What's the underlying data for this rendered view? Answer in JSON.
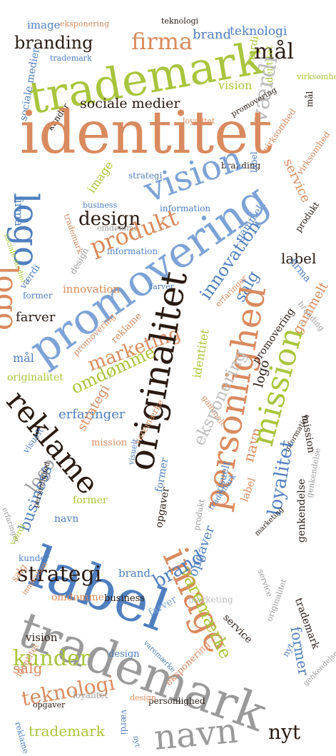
{
  "palette": {
    "green": "#a9c53d",
    "orange": "#d98a5e",
    "blue": "#4f7fbf",
    "lightblue": "#7da3d6",
    "gray": "#9a9a9a",
    "lightgray": "#bdbdbd",
    "dark": "#2a1a12"
  },
  "words": [
    {
      "text": "image",
      "color": "blue"
    },
    {
      "text": "eksponering",
      "color": "orange"
    },
    {
      "text": "teknologi",
      "color": "dark"
    },
    {
      "text": "branding",
      "color": "dark"
    },
    {
      "text": "firma",
      "color": "orange"
    },
    {
      "text": "brand",
      "color": "blue"
    },
    {
      "text": "teknologi",
      "color": "blue"
    },
    {
      "text": "værdi",
      "color": "green"
    },
    {
      "text": "trademark",
      "color": "green"
    },
    {
      "text": "mål",
      "color": "dark"
    },
    {
      "text": "trademark",
      "color": "blue"
    },
    {
      "text": "sociale medier",
      "color": "blue"
    },
    {
      "text": "virksomhed",
      "color": "green"
    },
    {
      "text": "vision",
      "color": "green"
    },
    {
      "text": "identitet",
      "color": "green"
    },
    {
      "text": "mål",
      "color": "dark"
    },
    {
      "text": "værdi",
      "color": "lightgray"
    },
    {
      "text": "kunder",
      "color": "dark"
    },
    {
      "text": "sociale medier",
      "color": "dark"
    },
    {
      "text": "loyalitet",
      "color": "orange"
    },
    {
      "text": "promovering",
      "color": "dark"
    },
    {
      "text": "identitet",
      "color": "orange"
    },
    {
      "text": "virksomhed",
      "color": "orange"
    },
    {
      "text": "branding",
      "color": "dark"
    },
    {
      "text": "label",
      "color": "blue"
    },
    {
      "text": "service",
      "color": "orange"
    },
    {
      "text": "virksomhed",
      "color": "orange"
    },
    {
      "text": "strategi",
      "color": "blue"
    },
    {
      "text": "image",
      "color": "green"
    },
    {
      "text": "vision",
      "color": "lightblue"
    },
    {
      "text": "logo",
      "color": "blue"
    },
    {
      "text": "firma",
      "color": "blue"
    },
    {
      "text": "business",
      "color": "blue"
    },
    {
      "text": "design",
      "color": "dark"
    },
    {
      "text": "information",
      "color": "blue"
    },
    {
      "text": "produkt",
      "color": "dark"
    },
    {
      "text": "trademark",
      "color": "orange"
    },
    {
      "text": "omdømme",
      "color": "gray"
    },
    {
      "text": "produkt",
      "color": "orange"
    },
    {
      "text": "sociale medier",
      "color": "green"
    },
    {
      "text": "logo",
      "color": "orange"
    },
    {
      "text": "information",
      "color": "blue"
    },
    {
      "text": "gammelt",
      "color": "blue"
    },
    {
      "text": "label",
      "color": "dark"
    },
    {
      "text": "promovering",
      "color": "lightblue"
    },
    {
      "text": "design",
      "color": "gray"
    },
    {
      "text": "firma",
      "color": "blue"
    },
    {
      "text": "værdi",
      "color": "blue"
    },
    {
      "text": "innovation",
      "color": "orange"
    },
    {
      "text": "innovation",
      "color": "blue"
    },
    {
      "text": "salg",
      "color": "blue"
    },
    {
      "text": "former",
      "color": "blue"
    },
    {
      "text": "farver",
      "color": "blue"
    },
    {
      "text": "erfaringer",
      "color": "orange"
    },
    {
      "text": "gammelt",
      "color": "orange"
    },
    {
      "text": "branding",
      "color": "gray"
    },
    {
      "text": "farver",
      "color": "dark"
    },
    {
      "text": "marketing",
      "color": "orange"
    },
    {
      "text": "originalitet",
      "color": "dark"
    },
    {
      "text": "personlighed",
      "color": "orange"
    },
    {
      "text": "promovering",
      "color": "orange"
    },
    {
      "text": "reklame",
      "color": "orange"
    },
    {
      "text": "mål",
      "color": "blue"
    },
    {
      "text": "omdømme",
      "color": "green"
    },
    {
      "text": "identitet",
      "color": "green"
    },
    {
      "text": "originalitet",
      "color": "green"
    },
    {
      "text": "promovering",
      "color": "dark"
    },
    {
      "text": "gammelt",
      "color": "orange"
    },
    {
      "text": "logo",
      "color": "dark"
    },
    {
      "text": "reklame",
      "color": "dark"
    },
    {
      "text": "erfaringer",
      "color": "blue"
    },
    {
      "text": "mission",
      "color": "dark"
    },
    {
      "text": "strategi",
      "color": "orange"
    },
    {
      "text": "eksponering",
      "color": "lightgray"
    },
    {
      "text": "visuelt",
      "color": "blue"
    },
    {
      "text": "logo",
      "color": "gray"
    },
    {
      "text": "mission",
      "color": "orange"
    },
    {
      "text": "information",
      "color": "dark"
    },
    {
      "text": "navn",
      "color": "orange"
    },
    {
      "text": "mission",
      "color": "green"
    },
    {
      "text": "visuelt",
      "color": "blue"
    },
    {
      "text": "varemærke",
      "color": "orange"
    },
    {
      "text": "former",
      "color": "blue"
    },
    {
      "text": "business",
      "color": "blue"
    },
    {
      "text": "opgaver",
      "color": "dark"
    },
    {
      "text": "visuelt",
      "color": "blue"
    },
    {
      "text": "label",
      "color": "orange"
    },
    {
      "text": "loyalitet",
      "color": "blue"
    },
    {
      "text": "genkendelse",
      "color": "gray"
    },
    {
      "text": "erfaringer",
      "color": "gray"
    },
    {
      "text": "former",
      "color": "green"
    },
    {
      "text": "navn",
      "color": "blue"
    },
    {
      "text": "personlighed",
      "color": "dark"
    },
    {
      "text": "label",
      "color": "blue"
    },
    {
      "text": "trademark",
      "color": "blue"
    },
    {
      "text": "produkt",
      "color": "gray"
    },
    {
      "text": "marketing",
      "color": "dark"
    },
    {
      "text": "image",
      "color": "orange"
    },
    {
      "text": "genkendelse",
      "color": "dark"
    },
    {
      "text": "værdi",
      "color": "green"
    },
    {
      "text": "kunder",
      "color": "blue"
    },
    {
      "text": "opgaver",
      "color": "blue"
    },
    {
      "text": "strategi",
      "color": "dark"
    },
    {
      "text": "salg",
      "color": "orange"
    },
    {
      "text": "brand",
      "color": "blue"
    },
    {
      "text": "innovation",
      "color": "orange"
    },
    {
      "text": "service",
      "color": "gray"
    },
    {
      "text": "omdømme",
      "color": "orange"
    },
    {
      "text": "varemærke",
      "color": "green"
    },
    {
      "text": "trademark",
      "color": "dark"
    },
    {
      "text": "business",
      "color": "dark"
    },
    {
      "text": "brand",
      "color": "blue"
    },
    {
      "text": "marketing",
      "color": "lightgray"
    },
    {
      "text": "farver",
      "color": "lightblue"
    },
    {
      "text": "trademark",
      "color": "gray"
    },
    {
      "text": "service",
      "color": "dark"
    },
    {
      "text": "originalitet",
      "color": "gray"
    },
    {
      "text": "vision",
      "color": "dark"
    },
    {
      "text": "kunder",
      "color": "green"
    },
    {
      "text": "former",
      "color": "blue"
    },
    {
      "text": "design",
      "color": "blue"
    },
    {
      "text": "varemærke",
      "color": "blue"
    },
    {
      "text": "salg",
      "color": "orange"
    },
    {
      "text": "nyt",
      "color": "blue"
    },
    {
      "text": "identitet",
      "color": "orange"
    },
    {
      "text": "teknologi",
      "color": "orange"
    },
    {
      "text": "eksponering",
      "color": "orange"
    },
    {
      "text": "genkendelse",
      "color": "gray"
    },
    {
      "text": "reklame",
      "color": "blue"
    },
    {
      "text": "opgaver",
      "color": "dark"
    },
    {
      "text": "personlighed",
      "color": "dark"
    },
    {
      "text": "loyalitet",
      "color": "gray"
    },
    {
      "text": "værdi",
      "color": "blue"
    },
    {
      "text": "navn",
      "color": "gray"
    },
    {
      "text": "nyt",
      "color": "dark"
    },
    {
      "text": "trademark",
      "color": "green"
    },
    {
      "text": "design",
      "color": "orange"
    },
    {
      "text": "nyt",
      "color": "blue"
    }
  ]
}
